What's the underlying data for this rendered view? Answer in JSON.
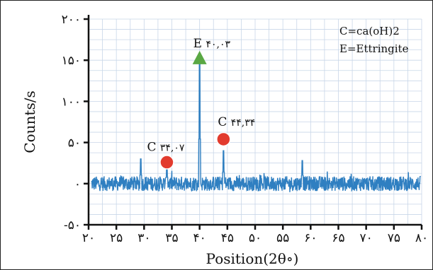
{
  "colors": {
    "signal": "#2f7fc1",
    "grid": "#c8d6e8",
    "axis": "#111111",
    "ca_marker": "#e23b2e",
    "ettringite_marker": "#5aa844"
  },
  "chart_data": {
    "type": "line",
    "title": "",
    "xlabel": "Position(2θ∘)",
    "ylabel": "Counts/s",
    "xlim": [
      20,
      80
    ],
    "ylim": [
      -50,
      200
    ],
    "x_ticks": [
      20,
      25,
      30,
      35,
      40,
      45,
      50,
      55,
      60,
      65,
      70,
      75,
      80
    ],
    "x_tick_labels": [
      "۲۰",
      "۲۵",
      "۳۰",
      "۳۵",
      "۴۰",
      "۴۵",
      "۵۰",
      "۵۵",
      "۶۰",
      "۶۵",
      "۷۰",
      "۷۵",
      "۸۰"
    ],
    "y_ticks": [
      -50,
      0,
      50,
      100,
      150,
      200
    ],
    "y_tick_labels": [
      "-۵۰",
      "۰",
      "۵۰",
      "۱۰۰",
      "۱۵۰",
      "۲۰۰"
    ],
    "grid": true,
    "legend_position": "top-right",
    "legend": [
      "C=ca(oH)2",
      "E=Ettringite"
    ],
    "baseline": 0,
    "noise_amplitude": 10,
    "peaks": [
      {
        "x": 29.4,
        "y": 30
      },
      {
        "x": 34.1,
        "y": 22
      },
      {
        "x": 40.0,
        "y": 155
      },
      {
        "x": 44.3,
        "y": 40
      },
      {
        "x": 58.5,
        "y": 28
      }
    ],
    "annotations": [
      {
        "label": "C",
        "value_text": "۳۴,۰۷",
        "x": 34.1,
        "y": 26,
        "marker": "circle",
        "color": "#e23b2e"
      },
      {
        "label": "E",
        "value_text": "۴۰,۰۳",
        "x": 40.0,
        "y": 152,
        "marker": "triangle",
        "color": "#5aa844"
      },
      {
        "label": "C",
        "value_text": "۴۴,۳۴",
        "x": 44.3,
        "y": 54,
        "marker": "circle",
        "color": "#e23b2e"
      }
    ]
  }
}
